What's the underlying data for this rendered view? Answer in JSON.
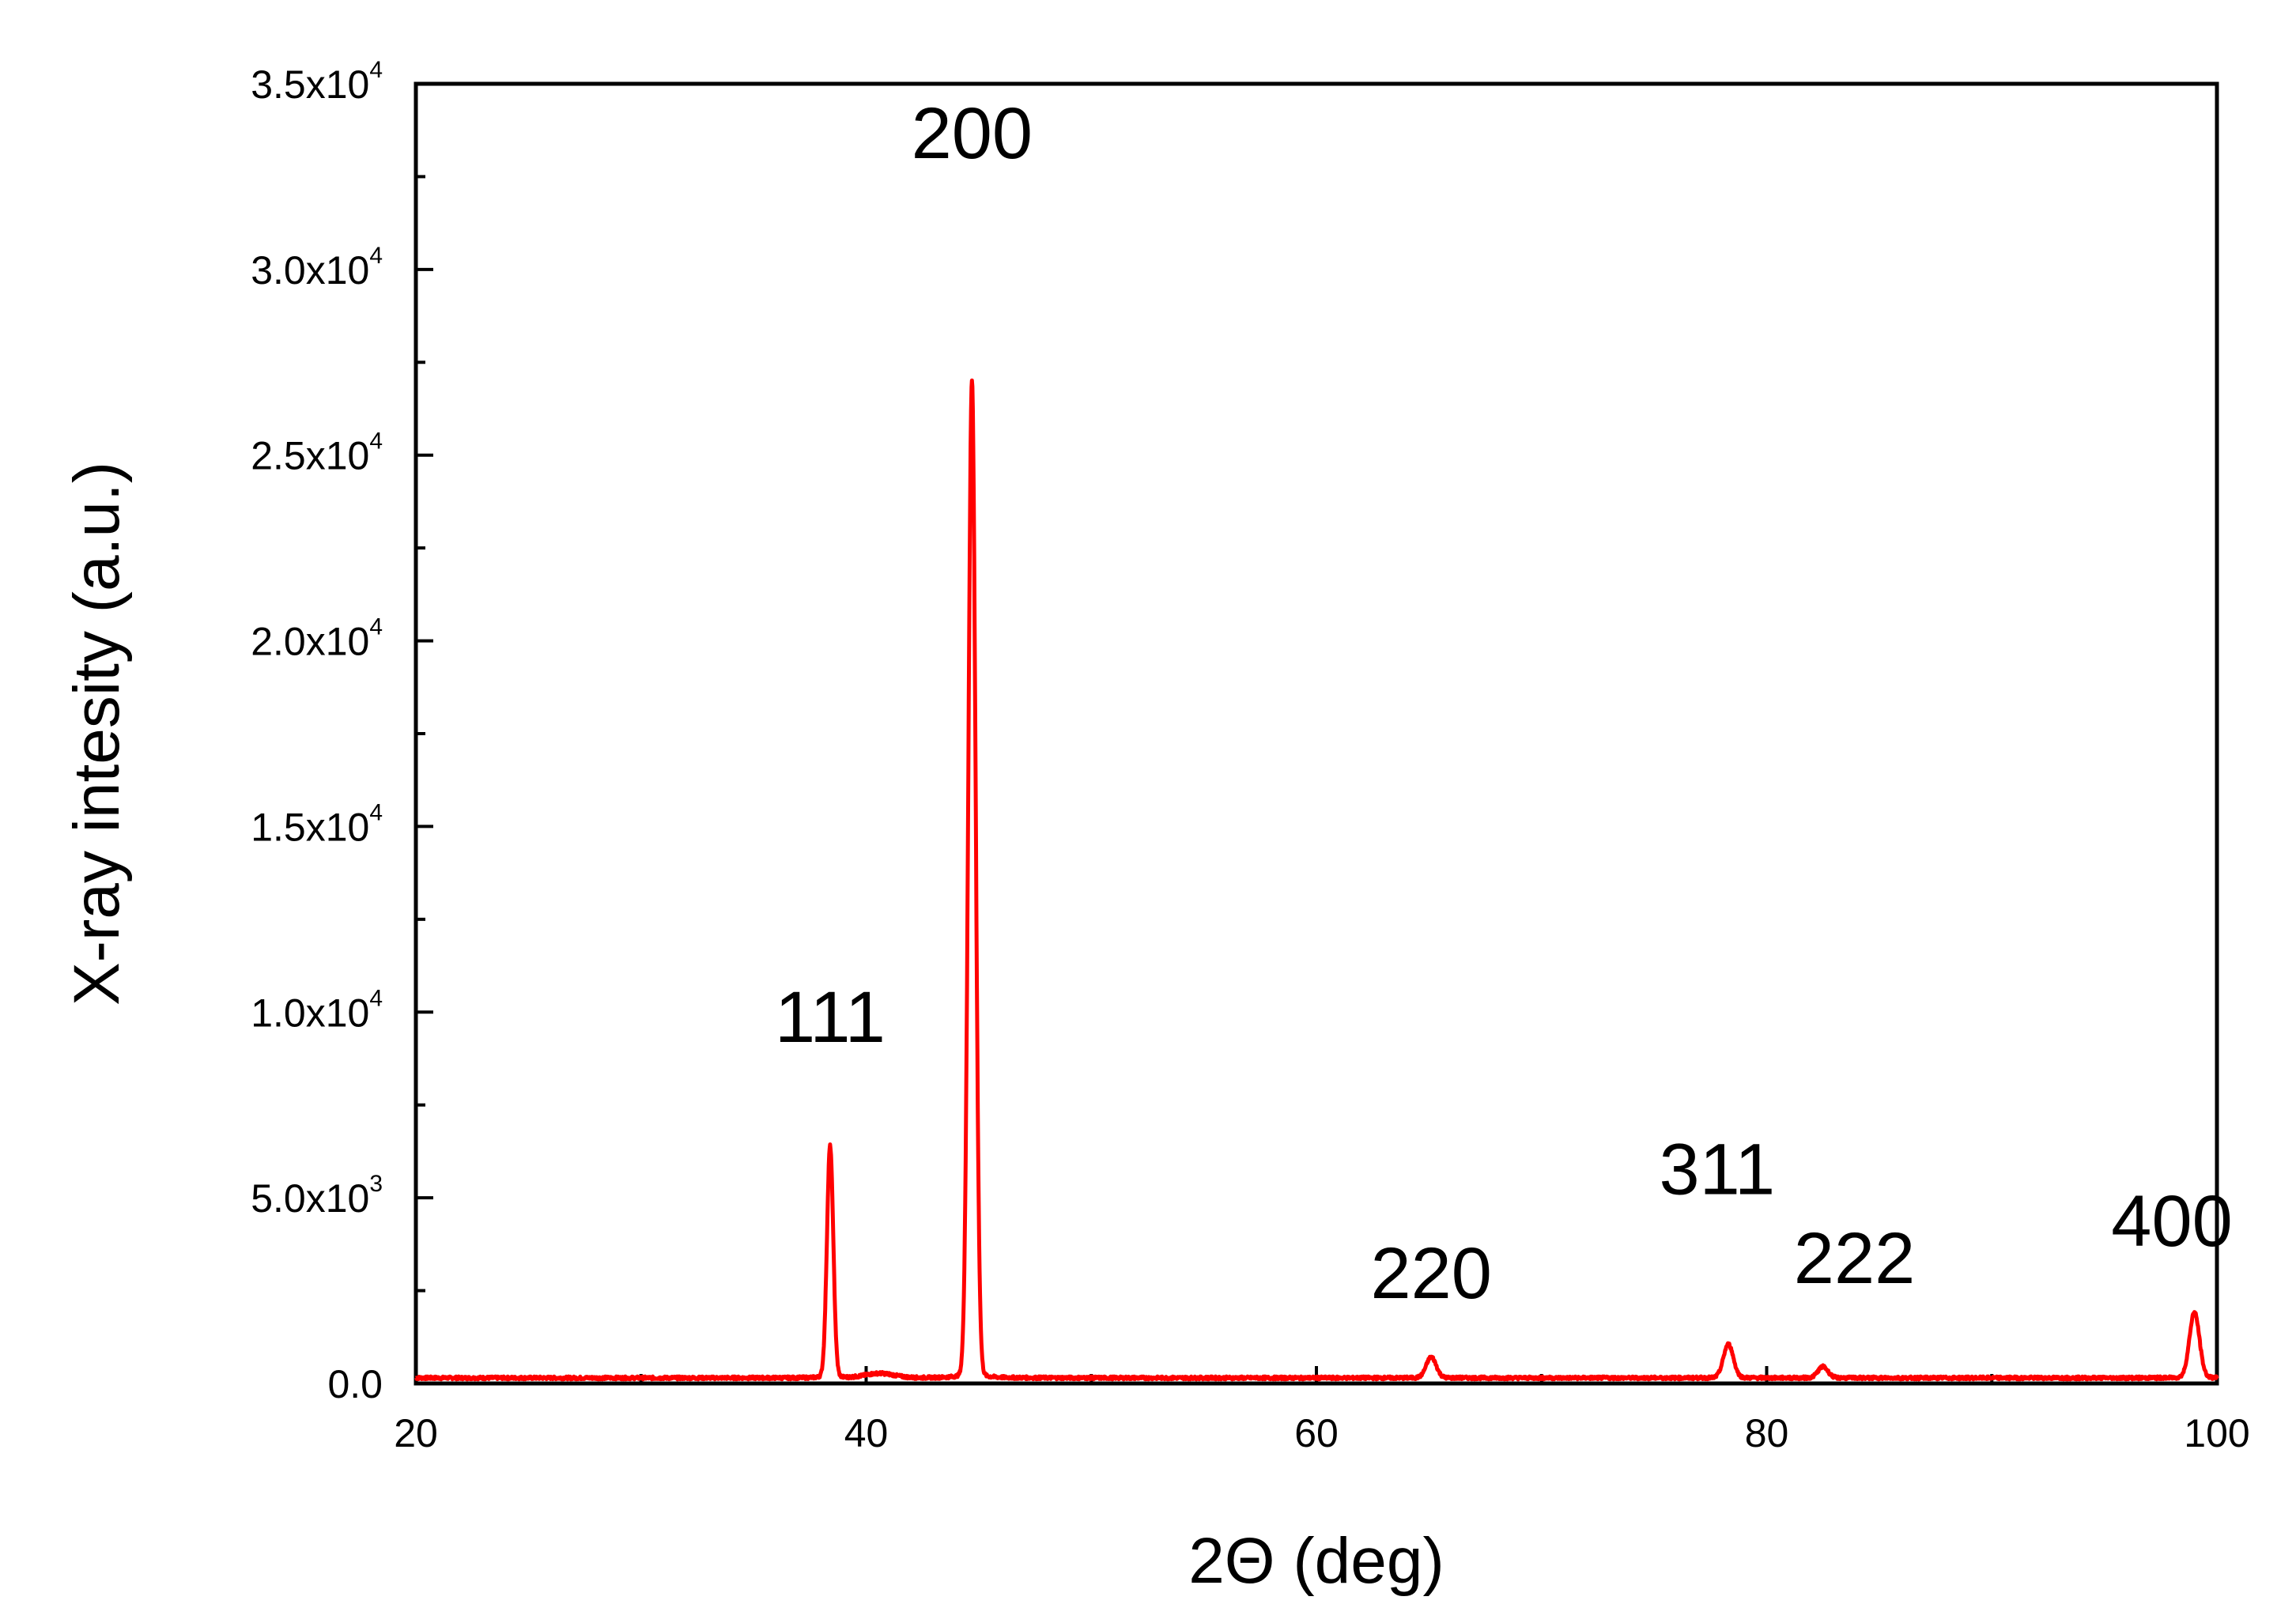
{
  "chart_data": {
    "type": "line",
    "title": "",
    "xlabel": "2Θ (deg)",
    "ylabel": "X-ray intesity (a.u.)",
    "xlim": [
      20,
      100
    ],
    "ylim": [
      0,
      35000
    ],
    "x_ticks": [
      {
        "value": 20,
        "label": "20"
      },
      {
        "value": 40,
        "label": "40"
      },
      {
        "value": 60,
        "label": "60"
      },
      {
        "value": 80,
        "label": "80"
      },
      {
        "value": 100,
        "label": "100"
      }
    ],
    "x_minor_ticks": [
      30,
      50,
      70,
      90
    ],
    "y_ticks": [
      {
        "value": 0,
        "mantissa": "0.0",
        "exp": ""
      },
      {
        "value": 5000,
        "mantissa": "5.0x10",
        "exp": "3"
      },
      {
        "value": 10000,
        "mantissa": "1.0x10",
        "exp": "4"
      },
      {
        "value": 15000,
        "mantissa": "1.5x10",
        "exp": "4"
      },
      {
        "value": 20000,
        "mantissa": "2.0x10",
        "exp": "4"
      },
      {
        "value": 25000,
        "mantissa": "2.5x10",
        "exp": "4"
      },
      {
        "value": 30000,
        "mantissa": "3.0x10",
        "exp": "4"
      },
      {
        "value": 35000,
        "mantissa": "3.5x10",
        "exp": "4"
      }
    ],
    "y_minor_ticks": [
      2500,
      7500,
      12500,
      17500,
      22500,
      27500,
      32500
    ],
    "grid": false,
    "legend": "none",
    "series": [
      {
        "color": "#ff0000",
        "baseline": 150,
        "peaks": [
          {
            "x": 38.4,
            "y": 7400,
            "label": "111"
          },
          {
            "x": 44.7,
            "y": 31500,
            "label": "200"
          },
          {
            "x": 65.1,
            "y": 800,
            "label": "220"
          },
          {
            "x": 78.3,
            "y": 1200,
            "label": "311"
          },
          {
            "x": 82.5,
            "y": 500,
            "label": "222"
          },
          {
            "x": 99.0,
            "y": 2200,
            "label": "400"
          }
        ]
      }
    ],
    "annotations": [
      {
        "text": "111",
        "x": 38.4,
        "y": 9200
      },
      {
        "text": "200",
        "x": 44.7,
        "y": 33000
      },
      {
        "text": "220",
        "x": 65.1,
        "y": 2300
      },
      {
        "text": "311",
        "x": 77.8,
        "y": 5100
      },
      {
        "text": "222",
        "x": 83.9,
        "y": 2700
      },
      {
        "text": "400",
        "x": 98.0,
        "y": 3700
      }
    ]
  }
}
